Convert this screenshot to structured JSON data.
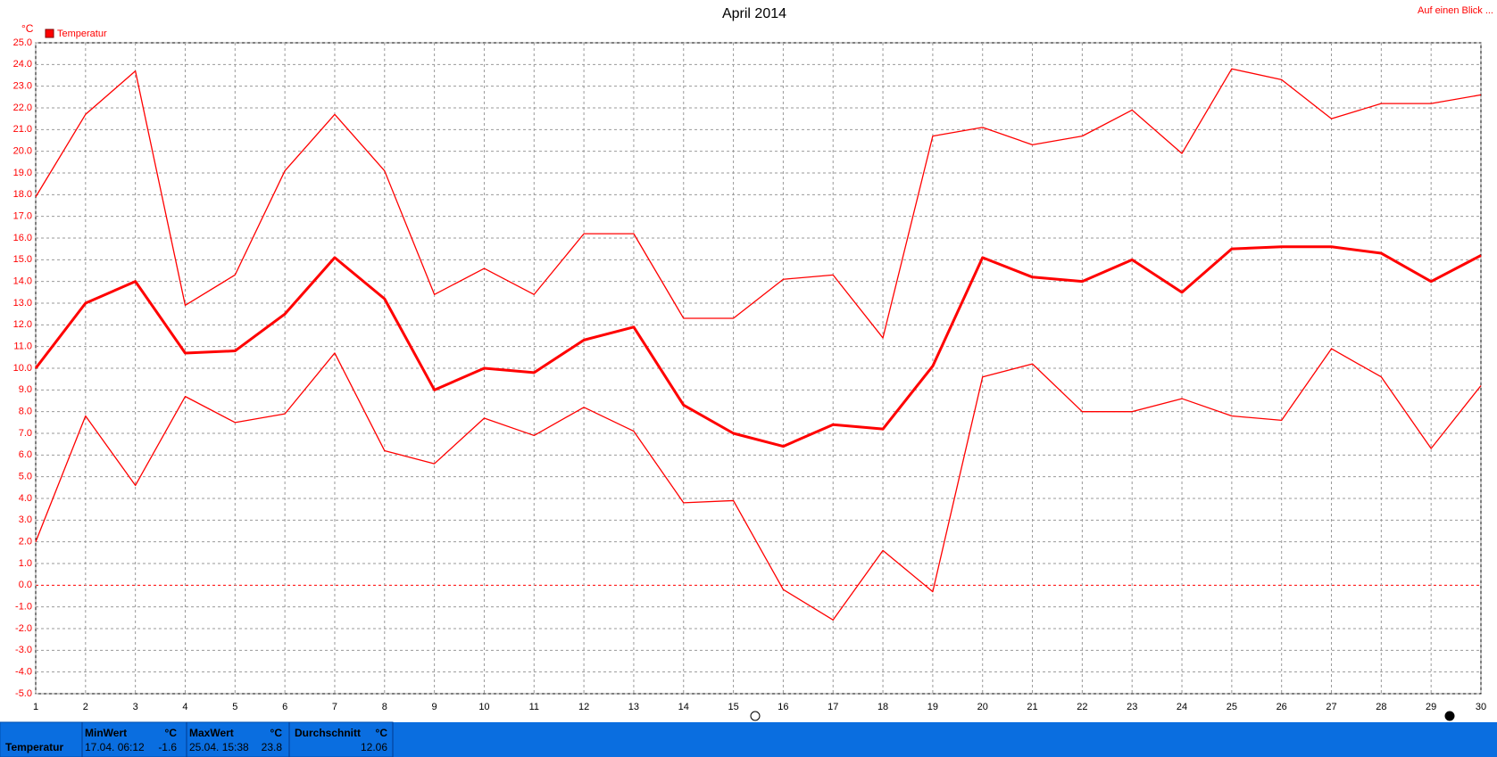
{
  "chart_data": {
    "type": "line",
    "title": "April 2014",
    "unit": "°C",
    "legend": "Temperatur",
    "link": "Auf einen Blick ...",
    "x": [
      1,
      2,
      3,
      4,
      5,
      6,
      7,
      8,
      9,
      10,
      11,
      12,
      13,
      14,
      15,
      16,
      17,
      18,
      19,
      20,
      21,
      22,
      23,
      24,
      25,
      26,
      27,
      28,
      29,
      30
    ],
    "xlim": [
      1,
      30
    ],
    "xticks": [
      1,
      2,
      3,
      4,
      5,
      6,
      7,
      8,
      9,
      10,
      11,
      12,
      13,
      14,
      15,
      16,
      17,
      18,
      19,
      20,
      21,
      22,
      23,
      24,
      25,
      26,
      27,
      28,
      29,
      30
    ],
    "ylim": [
      -5,
      25
    ],
    "yticks": [
      {
        "value": 25,
        "label": "25.0"
      },
      {
        "value": 24,
        "label": "24.0"
      },
      {
        "value": 23,
        "label": "23.0"
      },
      {
        "value": 22,
        "label": "22.0"
      },
      {
        "value": 21,
        "label": "21.0"
      },
      {
        "value": 20,
        "label": "20.0"
      },
      {
        "value": 19,
        "label": "19.0"
      },
      {
        "value": 18,
        "label": "18.0"
      },
      {
        "value": 17,
        "label": "17.0"
      },
      {
        "value": 16,
        "label": "16.0"
      },
      {
        "value": 15,
        "label": "15.0"
      },
      {
        "value": 14,
        "label": "14.0"
      },
      {
        "value": 13,
        "label": "13.0"
      },
      {
        "value": 12,
        "label": "12.0"
      },
      {
        "value": 11,
        "label": "11.0"
      },
      {
        "value": 10,
        "label": "10.0"
      },
      {
        "value": 9,
        "label": "9.0"
      },
      {
        "value": 8,
        "label": "8.0"
      },
      {
        "value": 7,
        "label": "7.0"
      },
      {
        "value": 6,
        "label": "6.0"
      },
      {
        "value": 5,
        "label": "5.0"
      },
      {
        "value": 4,
        "label": "4.0"
      },
      {
        "value": 3,
        "label": "3.0"
      },
      {
        "value": 2,
        "label": "2.0"
      },
      {
        "value": 1,
        "label": "1.0"
      },
      {
        "value": 0,
        "label": "0.0"
      },
      {
        "value": -1,
        "label": "-1.0"
      },
      {
        "value": -2,
        "label": "-2.0"
      },
      {
        "value": -3,
        "label": "-3.0"
      },
      {
        "value": -4,
        "label": "-4.0"
      },
      {
        "value": -5,
        "label": "-5.0"
      }
    ],
    "grid": true,
    "zero_line_color": "#ff0000",
    "color": "#ff0000",
    "series": [
      {
        "color": "#ff0000",
        "line_width": 1.3,
        "values": [
          17.9,
          21.7,
          23.7,
          12.9,
          14.3,
          19.1,
          21.7,
          19.1,
          13.4,
          14.6,
          13.4,
          16.2,
          16.2,
          12.3,
          12.3,
          14.1,
          14.3,
          11.4,
          20.7,
          21.1,
          20.3,
          20.7,
          21.9,
          19.9,
          23.8,
          23.3,
          21.5,
          22.2,
          22.2,
          22.6
        ]
      },
      {
        "color": "#ff0000",
        "line_width": 3,
        "values": [
          10.0,
          13.0,
          14.0,
          10.7,
          10.8,
          12.5,
          15.1,
          13.2,
          9.0,
          10.0,
          9.8,
          11.3,
          11.9,
          8.3,
          7.0,
          6.4,
          7.4,
          7.2,
          10.1,
          15.1,
          14.2,
          14.0,
          15.0,
          13.5,
          15.5,
          15.6,
          15.6,
          15.3,
          14.0,
          15.2
        ]
      },
      {
        "color": "#ff0000",
        "line_width": 1.3,
        "values": [
          2.0,
          7.8,
          4.6,
          8.7,
          7.5,
          7.9,
          10.7,
          6.2,
          5.6,
          7.7,
          6.9,
          8.2,
          7.1,
          3.8,
          3.9,
          -0.2,
          -1.6,
          1.6,
          -0.3,
          9.6,
          10.2,
          8.0,
          8.0,
          8.6,
          7.8,
          7.6,
          10.9,
          9.6,
          6.3,
          9.2
        ]
      }
    ]
  },
  "footer": {
    "label": "Temperatur",
    "min": {
      "title": "MinWert",
      "unit": "°C",
      "time": "17.04.  06:12",
      "value": "-1.6"
    },
    "max": {
      "title": "MaxWert",
      "unit": "°C",
      "time": "25.04.  15:38",
      "value": "23.8"
    },
    "avg": {
      "title": "Durchschnitt",
      "unit": "°C",
      "value": "12.06"
    }
  }
}
